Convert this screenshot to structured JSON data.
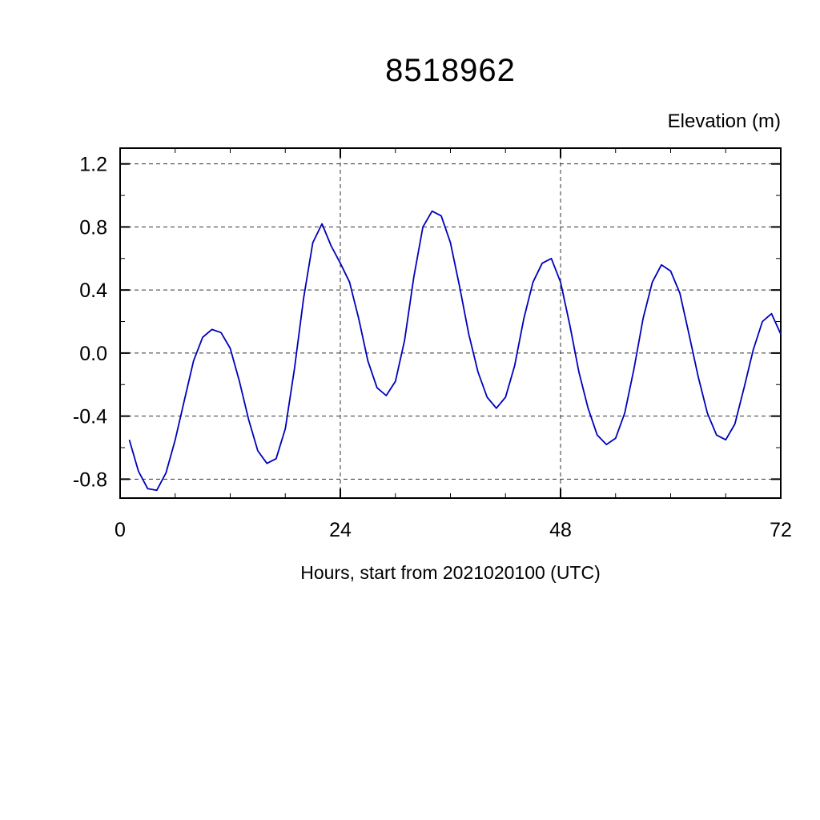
{
  "page": {
    "background": "#ffffff"
  },
  "chart_data": {
    "type": "line",
    "title": "8518962",
    "ylabel": "Elevation (m)",
    "xlabel": "Hours, start from 2021020100 (UTC)",
    "xlim": [
      0,
      72
    ],
    "ylim": [
      -0.92,
      1.3
    ],
    "x_ticks": [
      0,
      24,
      48,
      72
    ],
    "x_tick_labels": [
      "0",
      "24",
      "48",
      "72"
    ],
    "x_minor_ticks": [
      6,
      12,
      18,
      30,
      36,
      42,
      54,
      60,
      66
    ],
    "y_ticks": [
      -0.8,
      -0.4,
      0.0,
      0.4,
      0.8,
      1.2
    ],
    "y_tick_labels": [
      "-0.8",
      "-0.4",
      "0.0",
      "0.4",
      "0.8",
      "1.2"
    ],
    "y_minor_ticks": [
      -0.6,
      -0.2,
      0.2,
      0.6,
      1.0
    ],
    "grid": "dashed",
    "grid_vertical_at": [
      24,
      48
    ],
    "legend": "none",
    "line_color": "#0000bb",
    "frame_color": "#000000",
    "series": [
      {
        "name": "elevation",
        "x": [
          1,
          2,
          3,
          4,
          5,
          6,
          7,
          8,
          9,
          10,
          11,
          12,
          13,
          14,
          15,
          16,
          17,
          18,
          19,
          20,
          21,
          22,
          23,
          24,
          25,
          26,
          27,
          28,
          29,
          30,
          31,
          32,
          33,
          34,
          35,
          36,
          37,
          38,
          39,
          40,
          41,
          42,
          43,
          44,
          45,
          46,
          47,
          48,
          49,
          50,
          51,
          52,
          53,
          54,
          55,
          56,
          57,
          58,
          59,
          60,
          61,
          62,
          63,
          64,
          65,
          66,
          67,
          68,
          69,
          70,
          71,
          72
        ],
        "y": [
          -0.55,
          -0.75,
          -0.86,
          -0.87,
          -0.76,
          -0.55,
          -0.3,
          -0.05,
          0.1,
          0.15,
          0.13,
          0.03,
          -0.18,
          -0.42,
          -0.62,
          -0.7,
          -0.67,
          -0.48,
          -0.1,
          0.35,
          0.7,
          0.82,
          0.68,
          0.57,
          0.45,
          0.22,
          -0.05,
          -0.22,
          -0.27,
          -0.18,
          0.08,
          0.48,
          0.8,
          0.9,
          0.87,
          0.7,
          0.42,
          0.12,
          -0.12,
          -0.28,
          -0.35,
          -0.28,
          -0.08,
          0.22,
          0.45,
          0.57,
          0.6,
          0.45,
          0.18,
          -0.12,
          -0.35,
          -0.52,
          -0.58,
          -0.54,
          -0.38,
          -0.1,
          0.22,
          0.45,
          0.56,
          0.52,
          0.38,
          0.12,
          -0.15,
          -0.38,
          -0.52,
          -0.55,
          -0.45,
          -0.22,
          0.02,
          0.2,
          0.25,
          0.12
        ]
      }
    ]
  }
}
